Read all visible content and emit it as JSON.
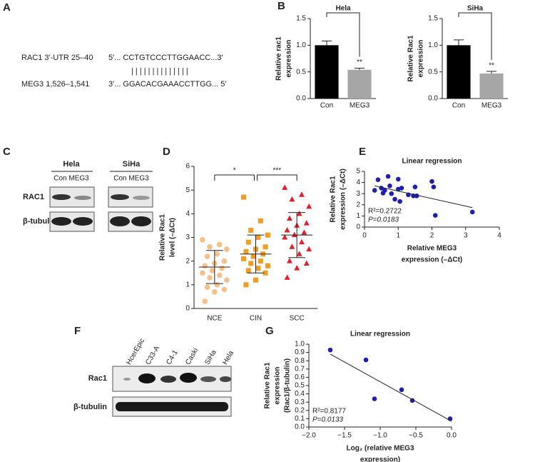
{
  "panel_labels": [
    "A",
    "B",
    "C",
    "D",
    "E",
    "F",
    "G"
  ],
  "sequence": {
    "rac1_label": "RAC1 3′-UTR 25–40",
    "rac1_seq": "5′... CCTGTCCCTTGGAACC...3′",
    "pairing": "| | | | | |   | | | | | | | |",
    "meg3_label": "MEG3 1,526–1,541",
    "meg3_seq": "3′... GGACACGAAACCTTGG... 5′"
  },
  "blot_c": {
    "cells": [
      "Hela",
      "SiHa"
    ],
    "lanes": [
      "Con MEG3",
      "Con MEG3"
    ],
    "rows": [
      "RAC1",
      "β-tubulin"
    ]
  },
  "blot_f": {
    "lanes": [
      "HcerEpic",
      "C33-A",
      "C4-1",
      "Caski",
      "SiHa",
      "Hela"
    ],
    "rows": [
      "Rac1",
      "β-tubulin"
    ]
  },
  "chart_data": [
    {
      "type": "bar",
      "title": "Hela",
      "y_label": [
        "Relative rac1",
        "expression"
      ],
      "categories": [
        "Con",
        "MEG3"
      ],
      "values": [
        1.0,
        0.54
      ],
      "errors": [
        0.08,
        0.03
      ],
      "colors": [
        "#000000",
        "#a6a6a6"
      ],
      "significance": "**",
      "ylim": [
        0,
        1.5
      ],
      "yticks": [
        {
          "value": 0,
          "label": "0.0"
        },
        {
          "value": 0.5,
          "label": "0.5"
        },
        {
          "value": 1,
          "label": "1.0"
        },
        {
          "value": 1.5,
          "label": "1.5"
        }
      ]
    },
    {
      "type": "bar",
      "title": "SiHa",
      "y_label": [
        "Relative Rac1",
        "expression"
      ],
      "categories": [
        "Con",
        "MEG3"
      ],
      "values": [
        1.0,
        0.47
      ],
      "errors": [
        0.1,
        0.04
      ],
      "colors": [
        "#000000",
        "#a6a6a6"
      ],
      "significance": "**",
      "ylim": [
        0,
        1.5
      ],
      "yticks": [
        {
          "value": 0,
          "label": "0.0"
        },
        {
          "value": 0.5,
          "label": "0.5"
        },
        {
          "value": 1,
          "label": "1.0"
        },
        {
          "value": 1.5,
          "label": "1.5"
        }
      ]
    },
    {
      "type": "dotplot",
      "y_label": [
        "Relative Rac1",
        "level (–ΔCt)"
      ],
      "categories": [
        "NCE",
        "CIN",
        "SCC"
      ],
      "groups": [
        {
          "color": "#f5c08a",
          "marker": "circle",
          "values": [
            2.9,
            2.7,
            2.6,
            2.5,
            2.3,
            2.2,
            2.0,
            1.9,
            1.8,
            1.7,
            1.6,
            1.5,
            1.4,
            1.3,
            1.2,
            1.0,
            0.9,
            0.8,
            0.7,
            0.3
          ],
          "mean": 1.75,
          "sd": 0.7
        },
        {
          "color": "#f39c1f",
          "marker": "square",
          "values": [
            4.7,
            3.7,
            3.3,
            3.1,
            3.0,
            2.8,
            2.6,
            2.5,
            2.4,
            2.3,
            2.2,
            2.1,
            2.0,
            1.9,
            1.8,
            1.7,
            1.6,
            1.5,
            1.2,
            1.0
          ],
          "mean": 2.3,
          "sd": 0.8
        },
        {
          "color": "#e0202a",
          "marker": "triangle",
          "values": [
            5.1,
            4.8,
            4.6,
            4.3,
            4.0,
            3.8,
            3.6,
            3.5,
            3.3,
            3.2,
            3.1,
            3.0,
            2.8,
            2.6,
            2.5,
            2.3,
            2.0,
            1.9,
            1.7,
            1.3
          ],
          "mean": 3.1,
          "sd": 0.95
        }
      ],
      "comparisons": [
        {
          "between": [
            0,
            1
          ],
          "label": "*"
        },
        {
          "between": [
            1,
            2
          ],
          "label": "***"
        }
      ],
      "ylim": [
        0,
        6
      ],
      "yticks": [
        0,
        1,
        2,
        3,
        4,
        5,
        6
      ]
    },
    {
      "type": "scatter",
      "title": "Linear regression",
      "x_label": [
        "Relative MEG3",
        "expression (–ΔCt)"
      ],
      "y_label": [
        "Relative Rac1",
        "expression (–ΔCt)"
      ],
      "color": "#1f1fb4",
      "x": [
        0.3,
        0.4,
        0.5,
        0.55,
        0.6,
        0.7,
        0.75,
        0.8,
        0.9,
        1.0,
        1.0,
        1.05,
        1.1,
        1.3,
        1.45,
        1.5,
        1.55,
        2.0,
        2.05,
        2.1,
        3.2
      ],
      "y": [
        3.3,
        4.25,
        3.5,
        3.05,
        3.3,
        4.55,
        3.7,
        3.0,
        2.5,
        4.3,
        3.4,
        2.3,
        3.5,
        2.9,
        2.8,
        3.6,
        2.8,
        4.1,
        3.6,
        1.05,
        1.35
      ],
      "fit": {
        "x": [
          0.3,
          3.2
        ],
        "y": [
          3.7,
          1.75
        ]
      },
      "annotations": [
        "R²=0.2722",
        "P=0.0183"
      ],
      "xlim": [
        0,
        4
      ],
      "xticks": [
        0,
        1,
        2,
        3,
        4
      ],
      "ylim": [
        0,
        5
      ],
      "yticks": [
        0,
        1,
        2,
        3,
        4,
        5
      ]
    },
    {
      "type": "scatter",
      "title": "Linear regression",
      "x_label": [
        "Log₂ (relative MEG3",
        "expression)"
      ],
      "y_label": [
        "Relative Rac1",
        "expression",
        "(Rac1/β-tubulin)"
      ],
      "color": "#1f1fb4",
      "x": [
        -1.7,
        -1.2,
        -1.08,
        -0.7,
        -0.55,
        -0.02
      ],
      "y": [
        0.93,
        0.81,
        0.34,
        0.45,
        0.32,
        0.1
      ],
      "fit": {
        "x": [
          -1.7,
          0
        ],
        "y": [
          0.88,
          0.07
        ]
      },
      "annotations": [
        "R²=0.8177",
        "P=0.0133"
      ],
      "xlim": [
        -2,
        0
      ],
      "xticks": [
        {
          "value": -2,
          "label": "−2.0"
        },
        {
          "value": -1.5,
          "label": "−1.5"
        },
        {
          "value": -1,
          "label": "−1.0"
        },
        {
          "value": -0.5,
          "label": "−0.5"
        },
        {
          "value": 0,
          "label": "0.0"
        }
      ],
      "ylim": [
        0,
        1
      ],
      "yticks": [
        {
          "value": 0,
          "label": "0.0"
        },
        {
          "value": 0.1,
          "label": "0.1"
        },
        {
          "value": 0.2,
          "label": "0.2"
        },
        {
          "value": 0.3,
          "label": "0.3"
        },
        {
          "value": 0.4,
          "label": "0.4"
        },
        {
          "value": 0.5,
          "label": "0.5"
        },
        {
          "value": 0.6,
          "label": "0.6"
        },
        {
          "value": 0.7,
          "label": "0.7"
        },
        {
          "value": 0.8,
          "label": "0.8"
        },
        {
          "value": 0.9,
          "label": "0.9"
        },
        {
          "value": 1,
          "label": "1.0"
        }
      ]
    }
  ]
}
